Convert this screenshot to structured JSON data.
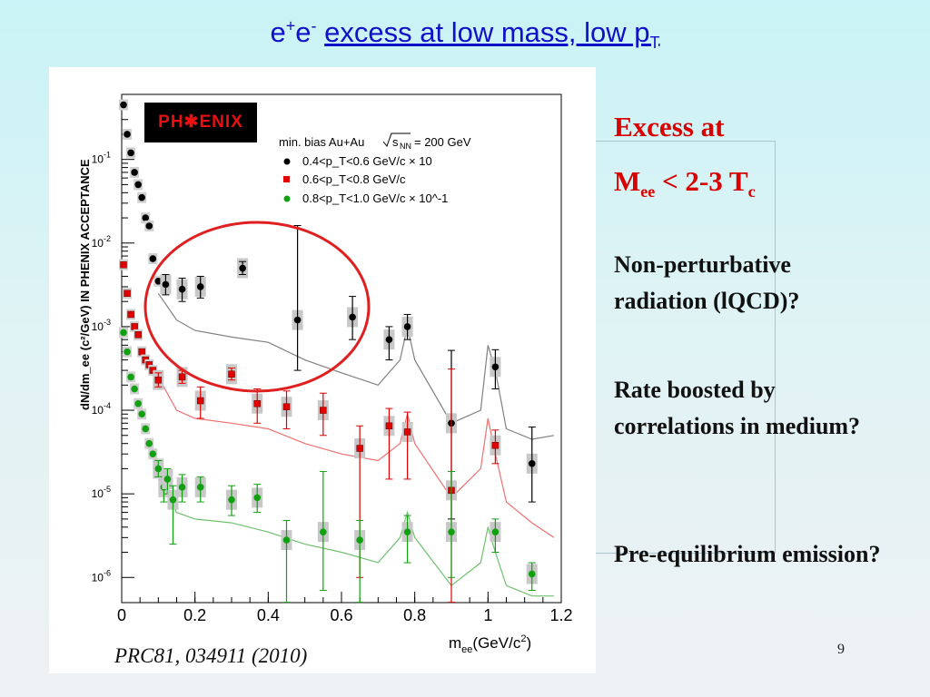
{
  "title": {
    "pre": "e",
    "sup1": "+",
    "mid": "e",
    "sup2": "-",
    "underlined": "excess at low mass, low p",
    "sub": "T"
  },
  "sidebar": {
    "heading_line1": "Excess at",
    "heading_line2_pre": "M",
    "heading_line2_sub": "ee",
    "heading_line2_mid": " < 2-3 T",
    "heading_line2_sub2": "c",
    "points": [
      "Non-perturbative radiation (lQCD)?",
      "Rate boosted by correlations in medium?",
      "Pre-equilibrium emission?"
    ]
  },
  "citation": "PRC81, 034911 (2010)",
  "page_number": "9",
  "logo_text": "PH✱ENIX",
  "colors": {
    "title": "#1010c8",
    "excess": "#d80000",
    "circle": "#e02020",
    "s1": "#000000",
    "s2": "#e00000",
    "s3": "#10a010"
  },
  "chart_data": {
    "type": "scatter",
    "xlabel": "m",
    "xlabel_sub": "ee",
    "xlabel_unit": "(GeV/c",
    "xlabel_sup": "2",
    "xlabel_end": ")",
    "ylabel": "dN/dm_ee (c²/GeV) IN PHENIX ACCEPTANCE",
    "xlim": [
      0,
      1.2
    ],
    "ylim": [
      5e-07,
      0.6
    ],
    "yscale": "log",
    "xticks": [
      "0",
      "0.2",
      "0.4",
      "0.6",
      "0.8",
      "1",
      "1.2"
    ],
    "yticks": [
      {
        "base": "10",
        "exp": "-1"
      },
      {
        "base": "10",
        "exp": "-2"
      },
      {
        "base": "10",
        "exp": "-3"
      },
      {
        "base": "10",
        "exp": "-4"
      },
      {
        "base": "10",
        "exp": "-5"
      },
      {
        "base": "10",
        "exp": "-6"
      }
    ],
    "legend": {
      "header": "min. bias Au+Au",
      "sqrt": "s",
      "sqrt_sub": "NN",
      "energy": "= 200 GeV",
      "entries": [
        "0.4<p_T<0.6 GeV/c × 10",
        "0.6<p_T<0.8 GeV/c",
        "0.8<p_T<1.0 GeV/c × 10^-1"
      ]
    },
    "series": [
      {
        "color": "#000000",
        "x": [
          0.005,
          0.015,
          0.025,
          0.035,
          0.045,
          0.055,
          0.065,
          0.075,
          0.085,
          0.1,
          0.12,
          0.165,
          0.215,
          0.33,
          0.48,
          0.63,
          0.73,
          0.78,
          0.9,
          1.02,
          1.12
        ],
        "y": [
          0.45,
          0.2,
          0.12,
          0.07,
          0.05,
          0.035,
          0.02,
          0.016,
          0.0065,
          0.0035,
          0.0032,
          0.0028,
          0.003,
          0.005,
          0.0012,
          0.0013,
          0.0007,
          0.001,
          7e-05,
          0.00033,
          2.3e-05
        ],
        "yerr_up": [
          0,
          0,
          0,
          0,
          0,
          0,
          0,
          0,
          0,
          0,
          0.001,
          0.001,
          0.001,
          0.001,
          0.015,
          0.001,
          0.0003,
          0.0004,
          0.00045,
          0.0002,
          4e-05
        ],
        "yerr_down": [
          0,
          0,
          0,
          0,
          0,
          0,
          0,
          0,
          0,
          0,
          0.0008,
          0.0008,
          0.0008,
          0.0008,
          0.0009,
          0.0006,
          0.0003,
          0.0003,
          6.5e-05,
          0.00015,
          1.5e-05
        ]
      },
      {
        "color": "#e00000",
        "x": [
          0.005,
          0.015,
          0.025,
          0.035,
          0.045,
          0.055,
          0.065,
          0.075,
          0.085,
          0.1,
          0.165,
          0.215,
          0.3,
          0.37,
          0.45,
          0.55,
          0.65,
          0.73,
          0.78,
          0.9,
          1.02
        ],
        "y": [
          0.0055,
          0.0025,
          0.0014,
          0.001,
          0.0008,
          0.0005,
          0.0004,
          0.00035,
          0.0003,
          0.00023,
          0.00025,
          0.00013,
          0.00027,
          0.00012,
          0.00011,
          0.0001,
          3.5e-05,
          6.5e-05,
          5.5e-05,
          1.1e-05,
          3.8e-05
        ],
        "yerr_up": [
          0,
          0,
          0,
          0,
          0,
          0,
          0,
          0,
          0,
          5e-05,
          5e-05,
          6e-05,
          5e-05,
          6e-05,
          6e-05,
          6e-05,
          3e-05,
          4e-05,
          4e-05,
          0.0003,
          2e-05
        ],
        "yerr_down": [
          0,
          0,
          0,
          0,
          0,
          0,
          0,
          0,
          0,
          4e-05,
          4e-05,
          5e-05,
          4e-05,
          5e-05,
          5e-05,
          5e-05,
          3.4e-05,
          5e-05,
          4e-05,
          1.09e-05,
          1.5e-05
        ]
      },
      {
        "color": "#10a010",
        "x": [
          0.005,
          0.015,
          0.025,
          0.035,
          0.045,
          0.055,
          0.065,
          0.075,
          0.085,
          0.1,
          0.115,
          0.125,
          0.14,
          0.165,
          0.215,
          0.3,
          0.37,
          0.45,
          0.55,
          0.65,
          0.78,
          0.9,
          1.02,
          1.12
        ],
        "y": [
          0.00085,
          0.0005,
          0.00025,
          0.00018,
          0.00012,
          9e-05,
          6e-05,
          4e-05,
          3e-05,
          2e-05,
          1.2e-05,
          1.5e-05,
          8.5e-06,
          1.2e-05,
          1.2e-05,
          8.5e-06,
          9e-06,
          2.8e-06,
          3.5e-06,
          2.8e-06,
          3.5e-06,
          3.5e-06,
          3.5e-06,
          1.1e-06
        ],
        "yerr_up": [
          0,
          0,
          0,
          0,
          0,
          0,
          0,
          0,
          0,
          5e-06,
          4e-06,
          5e-06,
          4e-06,
          5e-06,
          4e-06,
          4e-06,
          4e-06,
          2e-06,
          1.5e-05,
          2e-06,
          2e-06,
          1.5e-05,
          1.5e-06,
          4e-07
        ],
        "yerr_down": [
          0,
          0,
          0,
          0,
          0,
          0,
          0,
          0,
          0,
          4e-06,
          4e-06,
          5e-06,
          6e-06,
          4e-06,
          4e-06,
          3e-06,
          3e-06,
          2.7e-06,
          2.8e-06,
          2.7e-06,
          2e-06,
          2.5e-06,
          1.5e-06,
          4e-07
        ]
      }
    ]
  }
}
